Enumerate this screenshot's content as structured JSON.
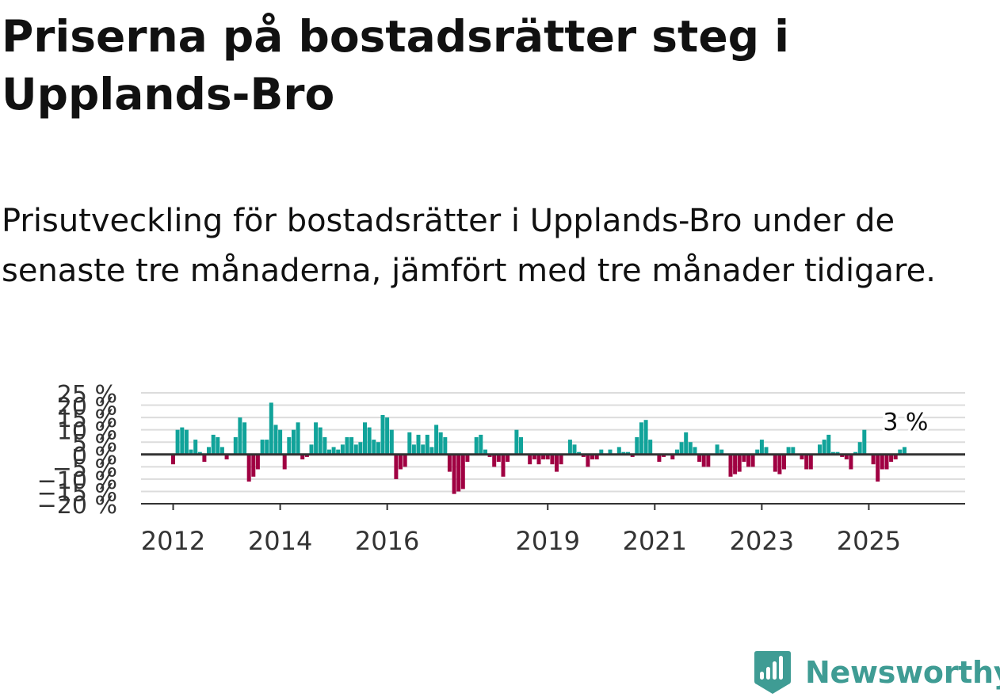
{
  "title": "Priserna på bostadsrätter steg i Upplands-Bro",
  "subtitle": "Prisutveckling för bostadsrätter i Upplands-Bro under de senaste tre månaderna, jämfört med tre månader tidigare.",
  "brand": {
    "name": "Newsworthy",
    "color": "#3f9c94"
  },
  "colors": {
    "positive": "#11a39a",
    "negative": "#a00042",
    "grid": "#dcdcdc",
    "axis": "#333333"
  },
  "chart_data": {
    "type": "bar",
    "title": "",
    "xlabel": "",
    "ylabel": "",
    "unit": "%",
    "ylim": [
      -20,
      25
    ],
    "y_ticks": [
      -20,
      -15,
      -10,
      -5,
      0,
      5,
      10,
      15,
      20,
      25
    ],
    "y_tick_labels": [
      "−20 %",
      "−15 %",
      "−10 %",
      "−5 %",
      "0 %",
      "5 %",
      "10 %",
      "15 %",
      "20 %",
      "25 %"
    ],
    "x_ticks": [
      2012,
      2014,
      2016,
      2019,
      2021,
      2023,
      2025
    ],
    "x_tick_labels": [
      "2012",
      "2014",
      "2016",
      "2019",
      "2021",
      "2023",
      "2025"
    ],
    "grid": true,
    "annotation": {
      "text": "3 %",
      "date": "2025-09"
    },
    "x": [
      "2012-01",
      "2012-02",
      "2012-03",
      "2012-04",
      "2012-05",
      "2012-06",
      "2012-07",
      "2012-08",
      "2012-09",
      "2012-10",
      "2012-11",
      "2012-12",
      "2013-01",
      "2013-02",
      "2013-03",
      "2013-04",
      "2013-05",
      "2013-06",
      "2013-07",
      "2013-08",
      "2013-09",
      "2013-10",
      "2013-11",
      "2013-12",
      "2014-01",
      "2014-02",
      "2014-03",
      "2014-04",
      "2014-05",
      "2014-06",
      "2014-07",
      "2014-08",
      "2014-09",
      "2014-10",
      "2014-11",
      "2014-12",
      "2015-01",
      "2015-02",
      "2015-03",
      "2015-04",
      "2015-05",
      "2015-06",
      "2015-07",
      "2015-08",
      "2015-09",
      "2015-10",
      "2015-11",
      "2015-12",
      "2016-01",
      "2016-02",
      "2016-03",
      "2016-04",
      "2016-05",
      "2016-06",
      "2016-07",
      "2016-08",
      "2016-09",
      "2016-10",
      "2016-11",
      "2016-12",
      "2017-01",
      "2017-02",
      "2017-03",
      "2017-04",
      "2017-05",
      "2017-06",
      "2017-07",
      "2017-08",
      "2017-09",
      "2017-10",
      "2017-11",
      "2017-12",
      "2018-01",
      "2018-02",
      "2018-03",
      "2018-04",
      "2018-05",
      "2018-06",
      "2018-07",
      "2018-08",
      "2018-09",
      "2018-10",
      "2018-11",
      "2018-12",
      "2019-01",
      "2019-02",
      "2019-03",
      "2019-04",
      "2019-05",
      "2019-06",
      "2019-07",
      "2019-08",
      "2019-09",
      "2019-10",
      "2019-11",
      "2019-12",
      "2020-01",
      "2020-02",
      "2020-03",
      "2020-04",
      "2020-05",
      "2020-06",
      "2020-07",
      "2020-08",
      "2020-09",
      "2020-10",
      "2020-11",
      "2020-12",
      "2021-01",
      "2021-02",
      "2021-03",
      "2021-04",
      "2021-05",
      "2021-06",
      "2021-07",
      "2021-08",
      "2021-09",
      "2021-10",
      "2021-11",
      "2021-12",
      "2022-01",
      "2022-02",
      "2022-03",
      "2022-04",
      "2022-05",
      "2022-06",
      "2022-07",
      "2022-08",
      "2022-09",
      "2022-10",
      "2022-11",
      "2022-12",
      "2023-01",
      "2023-02",
      "2023-03",
      "2023-04",
      "2023-05",
      "2023-06",
      "2023-07",
      "2023-08",
      "2023-09",
      "2023-10",
      "2023-11",
      "2023-12",
      "2024-01",
      "2024-02",
      "2024-03",
      "2024-04",
      "2024-05",
      "2024-06",
      "2024-07",
      "2024-08",
      "2024-09",
      "2024-10",
      "2024-11",
      "2024-12",
      "2025-01",
      "2025-02",
      "2025-03",
      "2025-04",
      "2025-05",
      "2025-06",
      "2025-07",
      "2025-08",
      "2025-09"
    ],
    "values": [
      -4,
      10,
      11,
      10,
      2,
      6,
      1,
      -3,
      3,
      8,
      7,
      3,
      -2,
      0,
      7,
      15,
      13,
      -11,
      -9,
      -6,
      6,
      6,
      21,
      12,
      10,
      -6,
      7,
      10,
      13,
      -2,
      -1,
      4,
      13,
      11,
      7,
      2,
      3,
      2,
      4,
      7,
      7,
      4,
      5,
      13,
      11,
      6,
      5,
      16,
      15,
      10,
      -10,
      -6,
      -5,
      9,
      4,
      8,
      4,
      8,
      3,
      12,
      9,
      7,
      -7,
      -16,
      -15,
      -14,
      -3,
      0,
      7,
      8,
      2,
      -1,
      -5,
      -3,
      -9,
      -3,
      0,
      10,
      7,
      0,
      -4,
      -2,
      -4,
      -2,
      -2,
      -4,
      -7,
      -4,
      0,
      6,
      4,
      1,
      -1,
      -5,
      -2,
      -2,
      2,
      0,
      2,
      0,
      3,
      1,
      1,
      -1,
      7,
      13,
      14,
      6,
      0,
      -3,
      -1,
      0,
      -2,
      2,
      5,
      9,
      5,
      3,
      -3,
      -5,
      -5,
      0,
      4,
      2,
      0,
      -9,
      -8,
      -7,
      -3,
      -5,
      -5,
      2,
      6,
      3,
      0,
      -7,
      -8,
      -6,
      3,
      3,
      0,
      -2,
      -6,
      -6,
      0,
      4,
      6,
      8,
      1,
      1,
      -1,
      -2,
      -6,
      1,
      5,
      10,
      0,
      -4,
      -11,
      -6,
      -6,
      -3,
      -2,
      2,
      3
    ]
  }
}
